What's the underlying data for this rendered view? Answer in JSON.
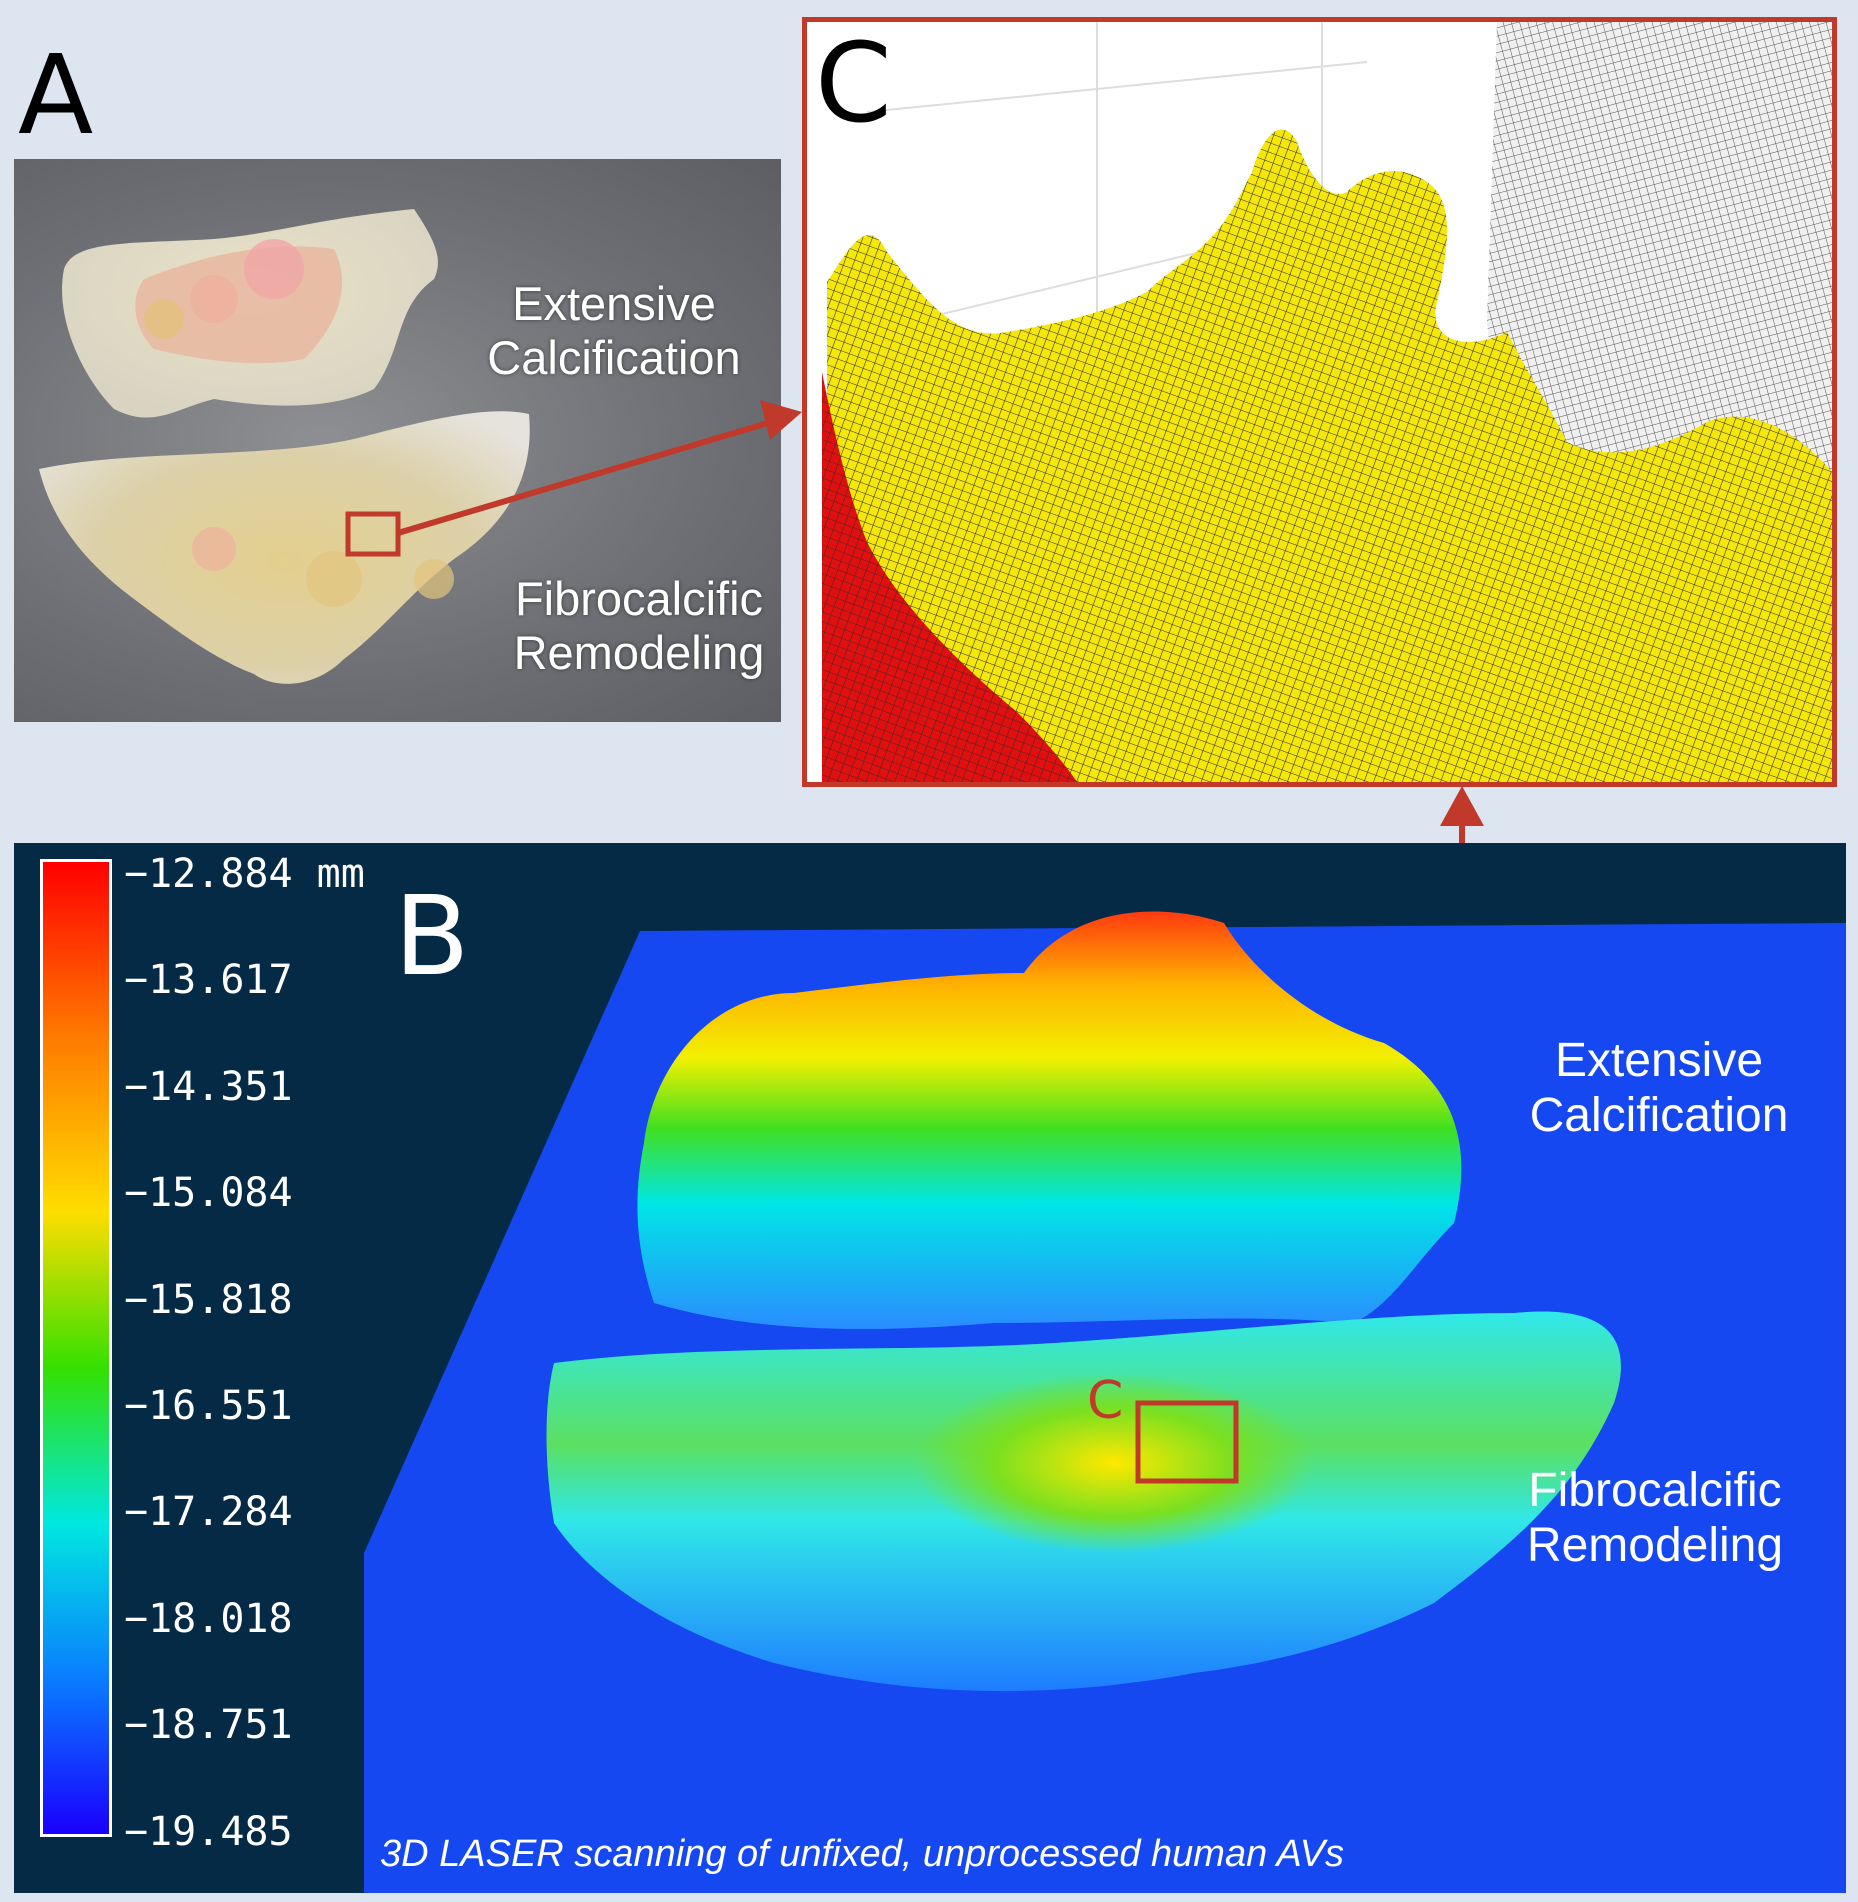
{
  "panels": {
    "a": {
      "letter": "A",
      "label_top": [
        "Extensive",
        "Calcification"
      ],
      "label_bottom": [
        "Fibrocalcific",
        "Remodeling"
      ]
    },
    "b": {
      "letter": "B",
      "label_top": [
        "Extensive",
        "Calcification"
      ],
      "label_bottom": [
        "Fibrocalcific",
        "Remodeling"
      ],
      "zoom_marker": "C",
      "caption": "3D LASER scanning of unfixed, unprocessed human AVs"
    },
    "c": {
      "letter": "C"
    }
  },
  "colorbar": {
    "ticks": [
      "−12.884 mm",
      "−13.617",
      "−14.351",
      "−15.084",
      "−15.818",
      "−16.551",
      "−17.284",
      "−18.018",
      "−18.751",
      "−19.485"
    ]
  },
  "colors": {
    "accent": "#c0392b",
    "panel_b_background": "#052a45",
    "page_background": "#dde6f0"
  }
}
